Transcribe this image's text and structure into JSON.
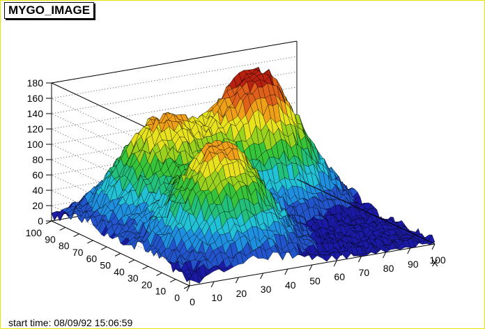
{
  "window": {
    "title": "MYGO_IMAGE",
    "start_time_label": "start time: 08/09/92 15:06:59"
  },
  "colors": {
    "frame_border": "#e6e600",
    "palette": [
      "#1a1aa6",
      "#2255cc",
      "#1f8fe0",
      "#22c2d6",
      "#22c07a",
      "#38c43a",
      "#9bd21e",
      "#e8e21e",
      "#f0a018",
      "#e0601a",
      "#b82010"
    ]
  },
  "chart_data": {
    "type": "surface",
    "title": "MYGO_IMAGE",
    "xlabel": "X",
    "ylabel": "",
    "zlabel": "",
    "x_range": [
      0,
      100
    ],
    "y_range": [
      0,
      100
    ],
    "z_range": [
      0,
      180
    ],
    "x_ticks": [
      "0",
      "10",
      "20",
      "30",
      "40",
      "50",
      "60",
      "70",
      "80",
      "90",
      "100"
    ],
    "y_ticks": [
      "0",
      "10",
      "20",
      "30",
      "40",
      "50",
      "60",
      "70",
      "80",
      "90",
      "100"
    ],
    "z_ticks": [
      "0",
      "20",
      "40",
      "60",
      "80",
      "100",
      "120",
      "140",
      "160",
      "180"
    ],
    "grid": true,
    "peaks": [
      {
        "x": 30,
        "y": 30,
        "height": 140
      },
      {
        "x": 30,
        "y": 75,
        "height": 130
      },
      {
        "x": 70,
        "y": 75,
        "height": 175
      }
    ],
    "baseline_noise": 15
  }
}
